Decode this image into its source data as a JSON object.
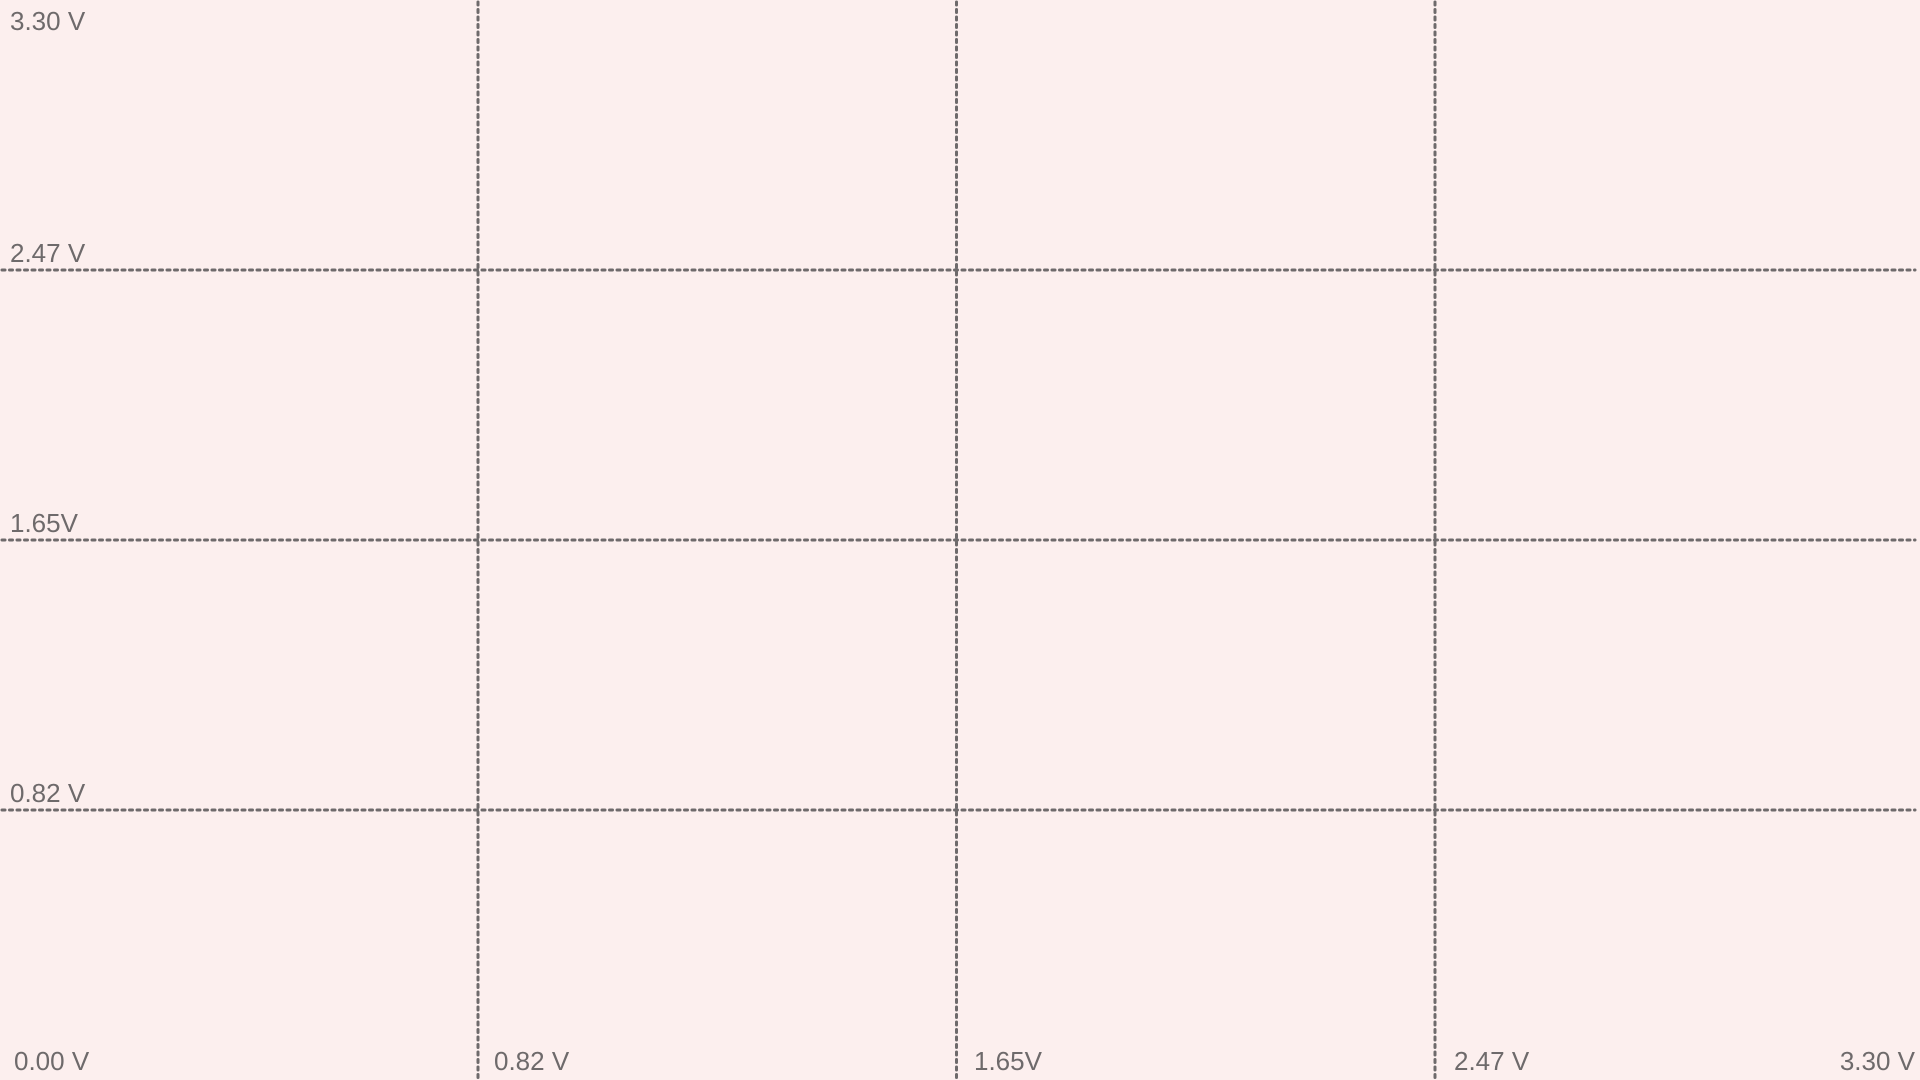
{
  "chart_data": {
    "type": "scatter",
    "title": "",
    "xlabel": "",
    "ylabel": "",
    "xlim": [
      0,
      3.3
    ],
    "ylim": [
      0,
      3.3
    ],
    "grid": true,
    "series": [],
    "x_ticks": [
      {
        "value": 0.0,
        "label": "0.00 V"
      },
      {
        "value": 0.825,
        "label": "0.82 V"
      },
      {
        "value": 1.65,
        "label": "1.65V"
      },
      {
        "value": 2.475,
        "label": "2.47 V"
      },
      {
        "value": 3.3,
        "label": "3.30 V"
      }
    ],
    "y_ticks": [
      {
        "value": 0.825,
        "label": "0.82 V"
      },
      {
        "value": 1.65,
        "label": "1.65V"
      },
      {
        "value": 2.475,
        "label": "2.47 V"
      },
      {
        "value": 3.3,
        "label": "3.30 V"
      }
    ],
    "colors": {
      "background": "#fcefee",
      "grid": "#6e6a6b",
      "text": "#6e6a6b"
    }
  }
}
